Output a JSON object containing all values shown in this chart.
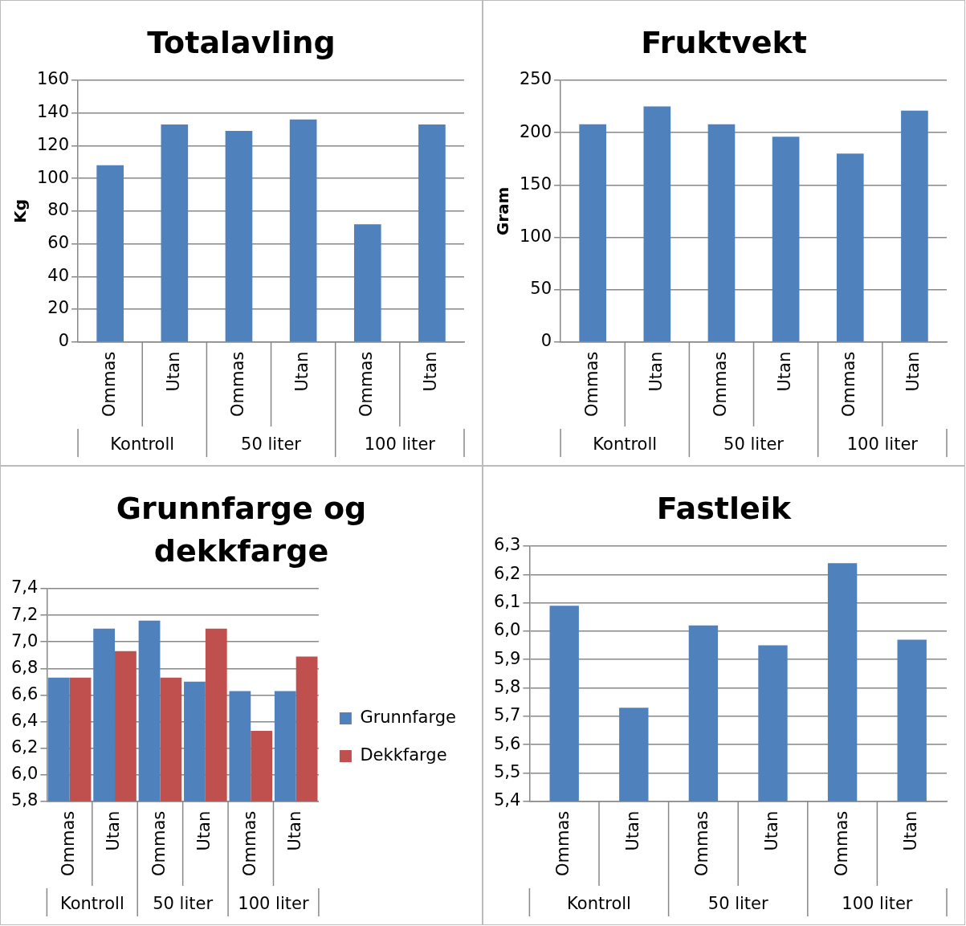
{
  "chart_data": [
    {
      "type": "bar",
      "title": "Totalavling",
      "ylabel": "Kg",
      "categories": [
        "Ommas",
        "Utan",
        "Ommas",
        "Utan",
        "Ommas",
        "Utan"
      ],
      "values": [
        108,
        133,
        129,
        136,
        72,
        133
      ],
      "color": "#4f81bd",
      "ylim": [
        0,
        160
      ],
      "yticks": [
        0,
        20,
        40,
        60,
        80,
        100,
        120,
        140,
        160
      ],
      "grid": "y",
      "annotations": [
        "Kontroll",
        "50 liter",
        "100 liter"
      ]
    },
    {
      "type": "bar",
      "title": "Fruktvekt",
      "ylabel": "Gram",
      "categories": [
        "Ommas",
        "Utan",
        "Ommas",
        "Utan",
        "Ommas",
        "Utan"
      ],
      "values": [
        208,
        225,
        208,
        196,
        180,
        221
      ],
      "color": "#4f81bd",
      "ylim": [
        0,
        250
      ],
      "yticks": [
        0,
        50,
        100,
        150,
        200,
        250
      ],
      "grid": "y",
      "annotations": [
        "Kontroll",
        "50 liter",
        "100 liter"
      ]
    },
    {
      "type": "bar",
      "title": "Grunnfarge og dekkfarge",
      "categories": [
        "Ommas",
        "Utan",
        "Ommas",
        "Utan",
        "Ommas",
        "Utan"
      ],
      "series": [
        {
          "name": "Grunnfarge",
          "color": "#4f81bd",
          "values": [
            6.73,
            7.1,
            7.16,
            6.7,
            6.63,
            6.63
          ]
        },
        {
          "name": "Dekkfarge",
          "color": "#c0504d",
          "values": [
            6.73,
            6.93,
            6.73,
            7.1,
            6.33,
            6.89
          ]
        }
      ],
      "ylim": [
        5.8,
        7.4
      ],
      "yticks": [
        {
          "value": 5.8,
          "label": "5,8"
        },
        {
          "value": 6.0,
          "label": "6,0"
        },
        {
          "value": 6.2,
          "label": "6,2"
        },
        {
          "value": 6.4,
          "label": "6,4"
        },
        {
          "value": 6.6,
          "label": "6,6"
        },
        {
          "value": 6.8,
          "label": "6,8"
        },
        {
          "value": 7.0,
          "label": "7,0"
        },
        {
          "value": 7.2,
          "label": "7,2"
        },
        {
          "value": 7.4,
          "label": "7,4"
        }
      ],
      "grid": "y",
      "legend": "right",
      "annotations": [
        "Kontroll",
        "50 liter",
        "100 liter"
      ]
    },
    {
      "type": "bar",
      "title": "Fastleik",
      "categories": [
        "Ommas",
        "Utan",
        "Ommas",
        "Utan",
        "Ommas",
        "Utan"
      ],
      "values": [
        6.09,
        5.73,
        6.02,
        5.95,
        6.24,
        5.97
      ],
      "color": "#4f81bd",
      "ylim": [
        5.4,
        6.3
      ],
      "yticks": [
        {
          "value": 5.4,
          "label": "5,4"
        },
        {
          "value": 5.5,
          "label": "5,5"
        },
        {
          "value": 5.6,
          "label": "5,6"
        },
        {
          "value": 5.7,
          "label": "5,7"
        },
        {
          "value": 5.8,
          "label": "5,8"
        },
        {
          "value": 5.9,
          "label": "5,9"
        },
        {
          "value": 6.0,
          "label": "6,0"
        },
        {
          "value": 6.1,
          "label": "6,1"
        },
        {
          "value": 6.2,
          "label": "6,2"
        },
        {
          "value": 6.3,
          "label": "6,3"
        }
      ],
      "grid": "y",
      "annotations": [
        "Kontroll",
        "50 liter",
        "100 liter"
      ]
    }
  ]
}
